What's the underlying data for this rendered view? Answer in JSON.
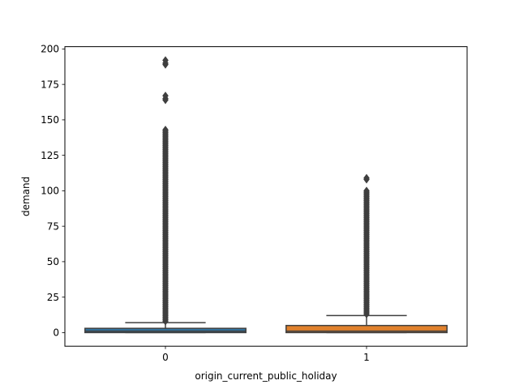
{
  "chart_data": {
    "type": "box",
    "title": "",
    "xlabel": "origin_current_public_holiday",
    "ylabel": "demand",
    "ylim": [
      -9.6,
      201.6
    ],
    "yticks": [
      0,
      25,
      50,
      75,
      100,
      125,
      150,
      175,
      200
    ],
    "categories": [
      "0",
      "1"
    ],
    "grid": false,
    "legend": "none",
    "boxes": [
      {
        "category": "0",
        "color": "#3274a1",
        "whisker_low": 0,
        "q1": 0,
        "median": 1,
        "q3": 3,
        "whisker_high": 7,
        "outliers_range": [
          8,
          143
        ],
        "outliers_high": [
          164,
          165,
          167,
          189,
          190,
          192
        ]
      },
      {
        "category": "1",
        "color": "#e1812c",
        "whisker_low": 0,
        "q1": 0,
        "median": 1,
        "q3": 5,
        "whisker_high": 12,
        "outliers_range": [
          13,
          100
        ],
        "outliers_high": [
          108,
          109
        ]
      }
    ]
  }
}
